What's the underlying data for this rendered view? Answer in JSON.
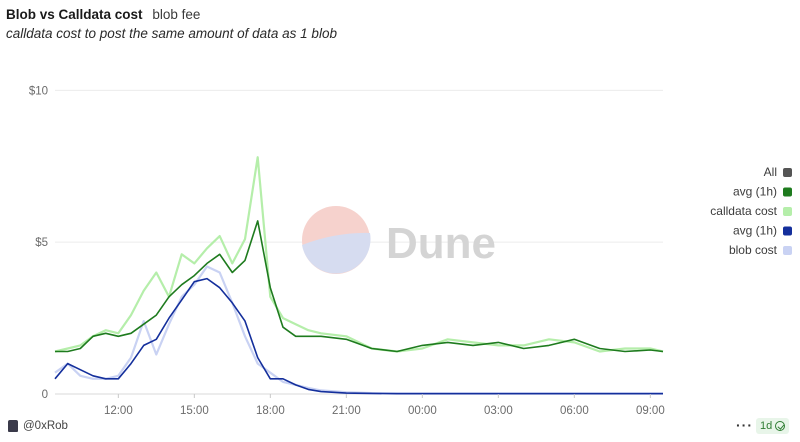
{
  "header": {
    "title": "Blob vs Calldata cost",
    "tab": "blob fee",
    "description": "calldata cost to post the same amount of data as 1 blob"
  },
  "watermark": {
    "text": "Dune"
  },
  "footer": {
    "author": "@0xRob",
    "more": "···",
    "interval": "1d"
  },
  "colors": {
    "calldata_avg": "#1e7b1e",
    "calldata_raw": "#b5eeaa",
    "blob_avg": "#142f9c",
    "blob_raw": "#c9d2f3",
    "all": "#555555"
  },
  "chart_data": {
    "type": "line",
    "yaxis": {
      "ylim": [
        0,
        11
      ],
      "ticks": [
        0,
        5,
        10
      ],
      "tick_labels": [
        "0",
        "$5",
        "$10"
      ]
    },
    "xaxis": {
      "range_hours": [
        9.5,
        33.5
      ],
      "ticks": [
        12,
        15,
        18,
        21,
        24,
        27,
        30,
        33
      ],
      "tick_labels": [
        "12:00",
        "15:00",
        "18:00",
        "21:00",
        "00:00",
        "03:00",
        "06:00",
        "09:00"
      ]
    },
    "grid": true,
    "legend_placement": "right",
    "legend": [
      {
        "label": "All",
        "key": "all"
      },
      {
        "label": "avg (1h)",
        "key": "calldata_avg"
      },
      {
        "label": "calldata cost",
        "key": "calldata_raw"
      },
      {
        "label": "avg (1h)",
        "key": "blob_avg"
      },
      {
        "label": "blob cost",
        "key": "blob_raw"
      }
    ],
    "x": [
      9.5,
      10.0,
      10.5,
      11.0,
      11.5,
      12.0,
      12.5,
      13.0,
      13.5,
      14.0,
      14.5,
      15.0,
      15.5,
      16.0,
      16.5,
      17.0,
      17.5,
      18.0,
      18.5,
      19.0,
      19.5,
      20.0,
      21.0,
      22.0,
      23.0,
      24.0,
      25.0,
      26.0,
      27.0,
      28.0,
      29.0,
      30.0,
      31.0,
      32.0,
      33.0,
      33.5
    ],
    "series": [
      {
        "key": "calldata_raw",
        "values": [
          1.4,
          1.5,
          1.6,
          1.9,
          2.1,
          2.0,
          2.6,
          3.4,
          4.0,
          3.2,
          4.6,
          4.3,
          4.8,
          5.2,
          4.3,
          5.1,
          7.8,
          3.2,
          2.5,
          2.3,
          2.1,
          2.0,
          1.9,
          1.5,
          1.4,
          1.5,
          1.8,
          1.7,
          1.6,
          1.6,
          1.8,
          1.7,
          1.4,
          1.5,
          1.5,
          1.4
        ]
      },
      {
        "key": "calldata_avg",
        "values": [
          1.4,
          1.4,
          1.5,
          1.9,
          2.0,
          1.9,
          2.0,
          2.3,
          2.6,
          3.2,
          3.6,
          3.9,
          4.3,
          4.6,
          4.0,
          4.4,
          5.7,
          3.5,
          2.2,
          1.9,
          1.9,
          1.9,
          1.8,
          1.5,
          1.4,
          1.6,
          1.7,
          1.6,
          1.7,
          1.5,
          1.6,
          1.8,
          1.5,
          1.4,
          1.45,
          1.4
        ]
      },
      {
        "key": "blob_raw",
        "values": [
          0.7,
          1.0,
          0.6,
          0.5,
          0.5,
          0.6,
          1.2,
          2.4,
          1.3,
          2.3,
          3.2,
          3.6,
          4.2,
          4.0,
          3.0,
          1.9,
          1.0,
          0.7,
          0.4,
          0.3,
          0.2,
          0.12,
          0.06,
          0.03,
          0.02,
          0.02,
          0.02,
          0.02,
          0.02,
          0.02,
          0.02,
          0.02,
          0.02,
          0.02,
          0.02,
          0.02
        ]
      },
      {
        "key": "blob_avg",
        "values": [
          0.5,
          1.0,
          0.8,
          0.6,
          0.5,
          0.5,
          1.0,
          1.6,
          1.8,
          2.5,
          3.1,
          3.7,
          3.8,
          3.5,
          3.0,
          2.4,
          1.2,
          0.5,
          0.5,
          0.3,
          0.15,
          0.08,
          0.03,
          0.02,
          0.01,
          0.01,
          0.01,
          0.01,
          0.01,
          0.01,
          0.01,
          0.01,
          0.01,
          0.01,
          0.01,
          0.01
        ]
      }
    ]
  }
}
